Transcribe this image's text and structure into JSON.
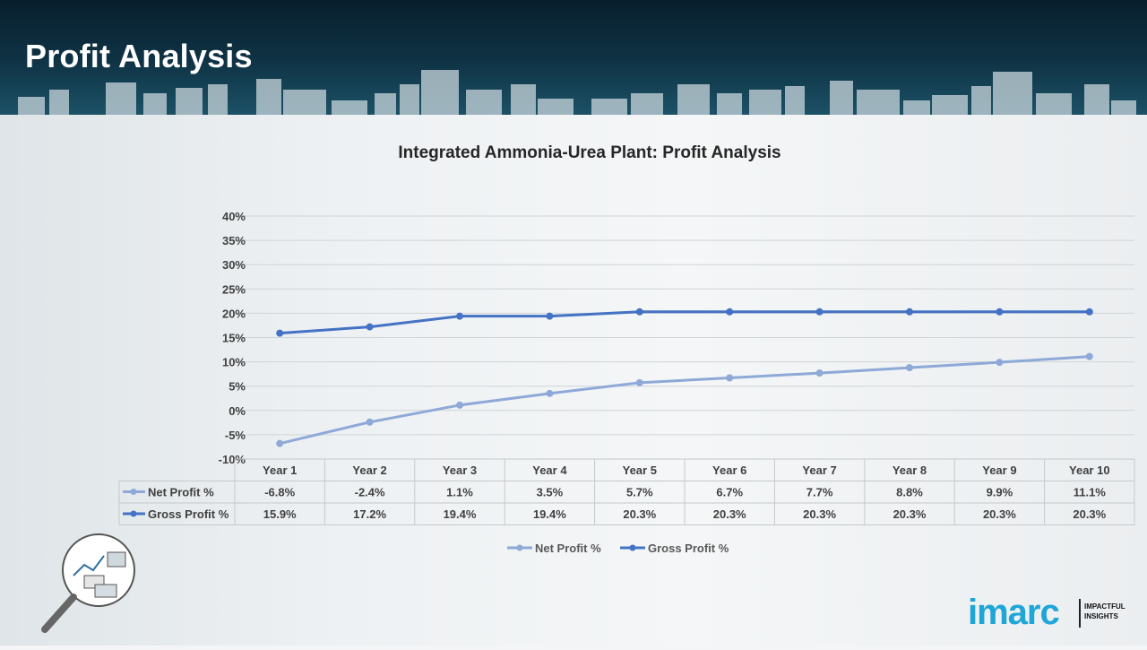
{
  "page": {
    "title": "Profit Analysis"
  },
  "brand": {
    "name": "imarc",
    "tagline_line1": "IMPACTFUL",
    "tagline_line2": "INSIGHTS",
    "accent": "#1fa6d8"
  },
  "chart_data": {
    "type": "line",
    "title": "Integrated Ammonia-Urea Plant: Profit Analysis",
    "xlabel": "",
    "ylabel": "",
    "categories": [
      "Year 1",
      "Year 2",
      "Year 3",
      "Year 4",
      "Year 5",
      "Year 6",
      "Year 7",
      "Year 8",
      "Year 9",
      "Year 10"
    ],
    "series": [
      {
        "name": "Net Profit %",
        "color": "#8ea9d8",
        "values": [
          -6.8,
          -2.4,
          1.1,
          3.5,
          5.7,
          6.7,
          7.7,
          8.8,
          9.9,
          11.1
        ],
        "labels": [
          "-6.8%",
          "-2.4%",
          "1.1%",
          "3.5%",
          "5.7%",
          "6.7%",
          "7.7%",
          "8.8%",
          "9.9%",
          "11.1%"
        ]
      },
      {
        "name": "Gross Profit %",
        "color": "#4472c4",
        "values": [
          15.9,
          17.2,
          19.4,
          19.4,
          20.3,
          20.3,
          20.3,
          20.3,
          20.3,
          20.3
        ],
        "labels": [
          "15.9%",
          "17.2%",
          "19.4%",
          "19.4%",
          "20.3%",
          "20.3%",
          "20.3%",
          "20.3%",
          "20.3%",
          "20.3%"
        ]
      }
    ],
    "ylim": [
      -10,
      40
    ],
    "yticks": [
      40,
      35,
      30,
      25,
      20,
      15,
      10,
      5,
      0,
      -5,
      -10
    ],
    "ytick_labels": [
      "40%",
      "35%",
      "30%",
      "25%",
      "20%",
      "15%",
      "10%",
      "5%",
      "0%",
      "-5%",
      "-10%"
    ],
    "grid": true,
    "data_table": true,
    "legend": "bottom"
  }
}
